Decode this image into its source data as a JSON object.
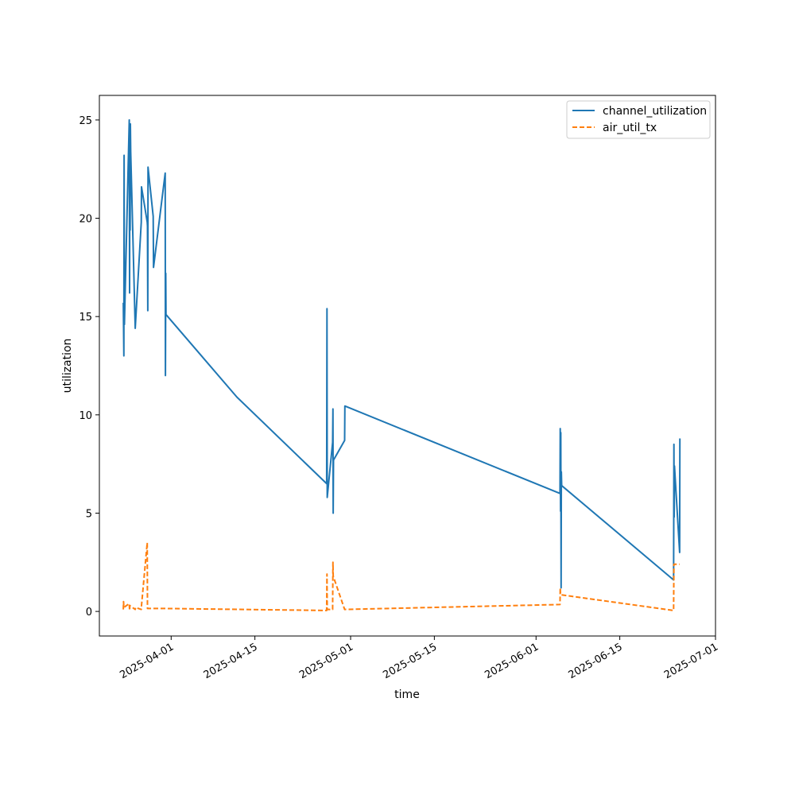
{
  "chart_data": {
    "type": "line",
    "title": "",
    "xlabel": "time",
    "ylabel": "utilization",
    "ylim": [
      -1.25,
      26.25
    ],
    "xlim": [
      "2025-03-20",
      "2025-07-01"
    ],
    "grid": false,
    "legend_position": "top-right",
    "x_ticks": [
      "2025-04-01",
      "2025-04-15",
      "2025-05-01",
      "2025-05-15",
      "2025-06-01",
      "2025-06-15",
      "2025-07-01"
    ],
    "y_ticks": [
      0,
      5,
      10,
      15,
      20,
      25
    ],
    "series": [
      {
        "name": "channel_utilization",
        "color": "#1f77b4",
        "dash": "solid",
        "points": [
          [
            "2025-03-24",
            15.7
          ],
          [
            "2025-03-24",
            14.6
          ],
          [
            "2025-03-24",
            13.0
          ],
          [
            "2025-03-24",
            23.2
          ],
          [
            "2025-03-24",
            14.6
          ],
          [
            "2025-03-25",
            25.0
          ],
          [
            "2025-03-25",
            16.2
          ],
          [
            "2025-03-25",
            23.6
          ],
          [
            "2025-03-25",
            19.4
          ],
          [
            "2025-03-25",
            24.8
          ],
          [
            "2025-03-25",
            23.4
          ],
          [
            "2025-03-26",
            14.4
          ],
          [
            "2025-03-27",
            19.8
          ],
          [
            "2025-03-27",
            21.6
          ],
          [
            "2025-03-28",
            19.8
          ],
          [
            "2025-03-28",
            19.6
          ],
          [
            "2025-03-28",
            15.3
          ],
          [
            "2025-03-28",
            22.6
          ],
          [
            "2025-03-29",
            20.1
          ],
          [
            "2025-03-29",
            17.5
          ],
          [
            "2025-03-31",
            22.3
          ],
          [
            "2025-03-31",
            12.0
          ],
          [
            "2025-03-31",
            17.2
          ],
          [
            "2025-03-31",
            15.1
          ],
          [
            "2025-04-12",
            10.9
          ],
          [
            "2025-04-27",
            6.5
          ],
          [
            "2025-04-27",
            15.4
          ],
          [
            "2025-04-27",
            5.8
          ],
          [
            "2025-04-28",
            8.6
          ],
          [
            "2025-04-28",
            10.3
          ],
          [
            "2025-04-28",
            5.0
          ],
          [
            "2025-04-28",
            7.7
          ],
          [
            "2025-04-30",
            8.7
          ],
          [
            "2025-04-30",
            10.45
          ],
          [
            "2025-06-05",
            6.0
          ],
          [
            "2025-06-05",
            9.3
          ],
          [
            "2025-06-05",
            5.1
          ],
          [
            "2025-06-05",
            9.1
          ],
          [
            "2025-06-05",
            1.2
          ],
          [
            "2025-06-05",
            7.1
          ],
          [
            "2025-06-05",
            6.4
          ],
          [
            "2025-06-24",
            1.6
          ],
          [
            "2025-06-24",
            8.5
          ],
          [
            "2025-06-24",
            4.8
          ],
          [
            "2025-06-24",
            7.4
          ],
          [
            "2025-06-25",
            3.0
          ],
          [
            "2025-06-25",
            8.8
          ]
        ]
      },
      {
        "name": "air_util_tx",
        "color": "#ff7f0e",
        "dash": "dashed",
        "points": [
          [
            "2025-03-24",
            0.1
          ],
          [
            "2025-03-24",
            0.5
          ],
          [
            "2025-03-24",
            0.2
          ],
          [
            "2025-03-25",
            0.4
          ],
          [
            "2025-03-25",
            0.05
          ],
          [
            "2025-03-25",
            0.3
          ],
          [
            "2025-03-26",
            0.1
          ],
          [
            "2025-03-26",
            0.2
          ],
          [
            "2025-03-27",
            0.1
          ],
          [
            "2025-03-27",
            0.3
          ],
          [
            "2025-03-28",
            3.5
          ],
          [
            "2025-03-28",
            0.15
          ],
          [
            "2025-03-31",
            0.15
          ],
          [
            "2025-04-27",
            0.05
          ],
          [
            "2025-04-27",
            1.9
          ],
          [
            "2025-04-27",
            0.1
          ],
          [
            "2025-04-28",
            0.1
          ],
          [
            "2025-04-28",
            2.5
          ],
          [
            "2025-04-28",
            1.8
          ],
          [
            "2025-04-30",
            0.1
          ],
          [
            "2025-06-05",
            0.35
          ],
          [
            "2025-06-05",
            1.2
          ],
          [
            "2025-06-05",
            0.85
          ],
          [
            "2025-06-24",
            0.05
          ],
          [
            "2025-06-24",
            2.4
          ],
          [
            "2025-06-25",
            2.4
          ]
        ]
      }
    ]
  }
}
